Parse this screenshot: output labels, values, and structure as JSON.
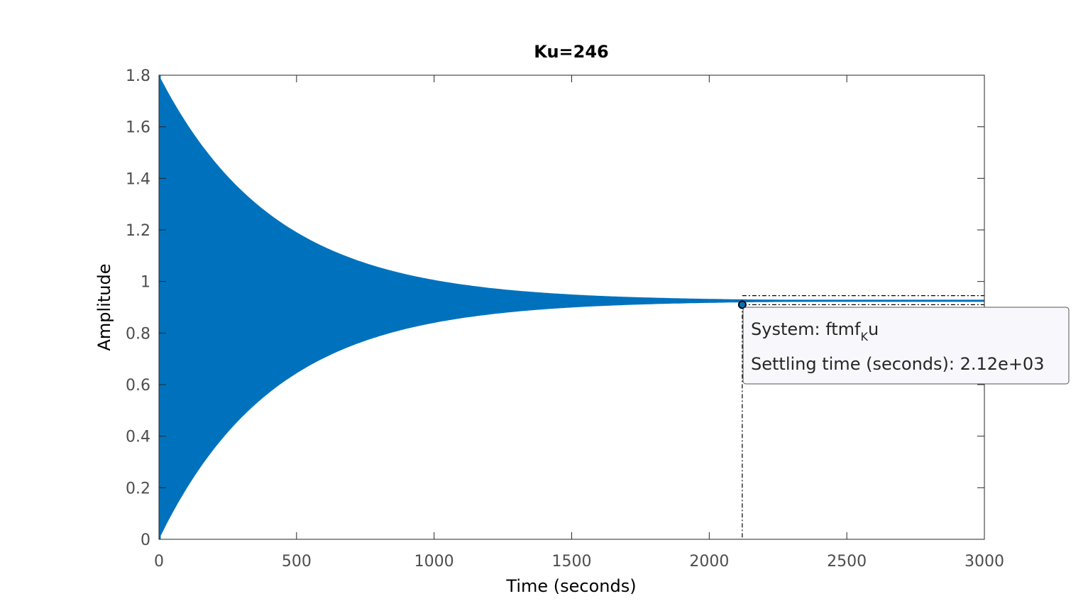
{
  "chart_data": {
    "type": "line",
    "title": "Ku=246",
    "xlabel": "Time (seconds)",
    "ylabel": "Amplitude",
    "xlim": [
      0,
      3000
    ],
    "ylim": [
      0,
      1.8
    ],
    "xticks": [
      0,
      500,
      1000,
      1500,
      2000,
      2500,
      3000
    ],
    "xtick_labels": [
      "0",
      "500",
      "1000",
      "1500",
      "2000",
      "2500",
      "3000"
    ],
    "yticks": [
      0,
      0.2,
      0.4,
      0.6,
      0.8,
      1,
      1.2,
      1.4,
      1.6,
      1.8
    ],
    "ytick_labels": [
      "0",
      "0.2",
      "0.4",
      "0.6",
      "0.8",
      "1",
      "1.2",
      "1.4",
      "1.6",
      "1.8"
    ],
    "series": [
      {
        "name": "ftmfKu",
        "color": "#0072bd",
        "final_value": 0.925,
        "initial_peak": 1.8,
        "initial_trough": 0.0,
        "decay_time_constant_s": 420,
        "settled_band": [
          0.91,
          0.945
        ]
      }
    ],
    "annotations": {
      "settling_marker": {
        "x": 2120,
        "y": 0.91
      },
      "tooltip": {
        "system_label": "System: ftmf",
        "system_subscript": "K",
        "system_suffix": "u",
        "settling_label": "Settling time (seconds): 2.12e+03"
      }
    },
    "grid": false
  }
}
